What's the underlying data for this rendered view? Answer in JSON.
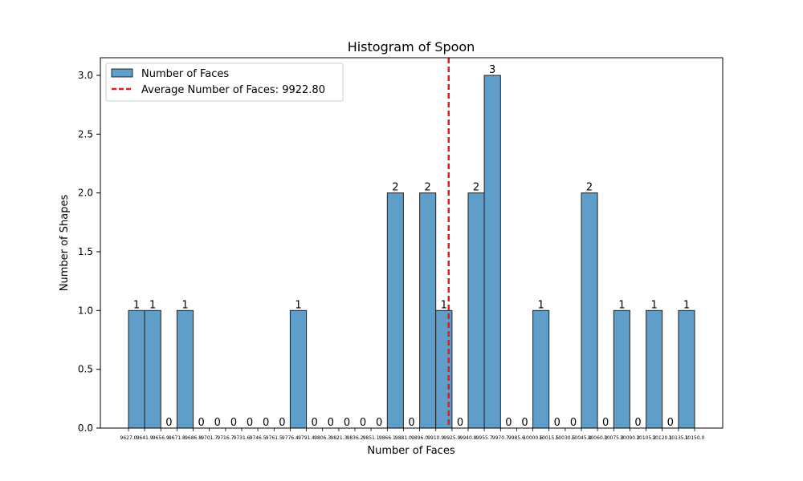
{
  "chart_data": {
    "type": "bar",
    "title": "Histogram of Spoon",
    "xlabel": "Number of Faces",
    "ylabel": "Number of Shapes",
    "ylim": [
      0,
      3.15
    ],
    "yticks": [
      "0.0",
      "0.5",
      "1.0",
      "1.5",
      "2.0",
      "2.5",
      "3.0"
    ],
    "bin_edges": [
      9627.0,
      9641.9,
      9656.9,
      9671.8,
      9686.8,
      9701.7,
      9716.7,
      9731.6,
      9746.5,
      9761.5,
      9776.4,
      9791.4,
      9806.3,
      9821.3,
      9836.2,
      9851.1,
      9866.1,
      9881.0,
      9896.0,
      9910.9,
      9925.9,
      9940.8,
      9955.7,
      9970.7,
      9985.6,
      10000.6,
      10015.5,
      10030.5,
      10045.4,
      10060.3,
      10075.3,
      10090.2,
      10105.2,
      10120.1,
      10135.1,
      10150.0
    ],
    "xtick_labels": [
      "9627.0",
      "9641.9",
      "9656.9",
      "9671.8",
      "9686.8",
      "9701.7",
      "9716.7",
      "9731.6",
      "9746.5",
      "9761.5",
      "9776.4",
      "9791.4",
      "9806.3",
      "9821.3",
      "9836.2",
      "9851.1",
      "9866.1",
      "9881.0",
      "9896.0",
      "9910.9",
      "9925.9",
      "9940.8",
      "9955.7",
      "9970.7",
      "9985.6",
      "10000.6",
      "10015.5",
      "10030.5",
      "10045.4",
      "10060.3",
      "10075.3",
      "10090.2",
      "10105.2",
      "10120.1",
      "10135.1",
      "10150.0"
    ],
    "series": [
      {
        "name": "Number of Faces",
        "values": [
          1,
          1,
          0,
          1,
          0,
          0,
          0,
          0,
          0,
          0,
          1,
          0,
          0,
          0,
          0,
          0,
          2,
          0,
          2,
          1,
          0,
          2,
          3,
          0,
          0,
          1,
          0,
          0,
          2,
          0,
          1,
          0,
          1,
          0,
          1
        ],
        "color": "#5f9ec9"
      }
    ],
    "average_line": {
      "label": "Average Number of Faces: 9922.80",
      "value": 9922.8,
      "color": "#e41a1c"
    },
    "legend_position": "upper-left",
    "grid": false
  }
}
